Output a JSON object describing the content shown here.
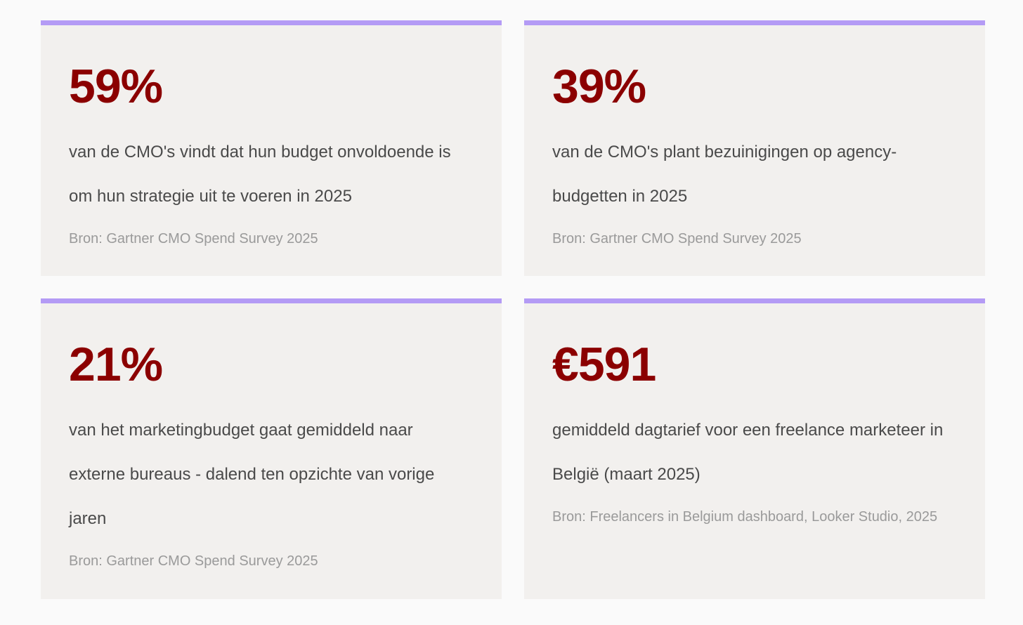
{
  "cards": [
    {
      "stat": "59%",
      "description": "van de CMO's vindt dat hun budget onvoldoende is om hun strategie uit te voeren in 2025",
      "source": "Bron: Gartner CMO Spend Survey 2025"
    },
    {
      "stat": "39%",
      "description": "van de CMO's plant bezuinigingen op agency-budgetten in 2025",
      "source": "Bron: Gartner CMO Spend Survey 2025"
    },
    {
      "stat": "21%",
      "description": "van het marketingbudget gaat gemiddeld naar externe bureaus - dalend ten opzichte van vorige jaren",
      "source": "Bron: Gartner CMO Spend Survey 2025"
    },
    {
      "stat": "€591",
      "description": "gemiddeld dagtarief voor een freelance marketeer in België (maart 2025)",
      "source": "Bron: Freelancers in Belgium dashboard, Looker Studio, 2025"
    }
  ],
  "colors": {
    "accent_border": "#b49bf5",
    "stat_text": "#8b0000",
    "card_background": "#f2f0ee"
  }
}
